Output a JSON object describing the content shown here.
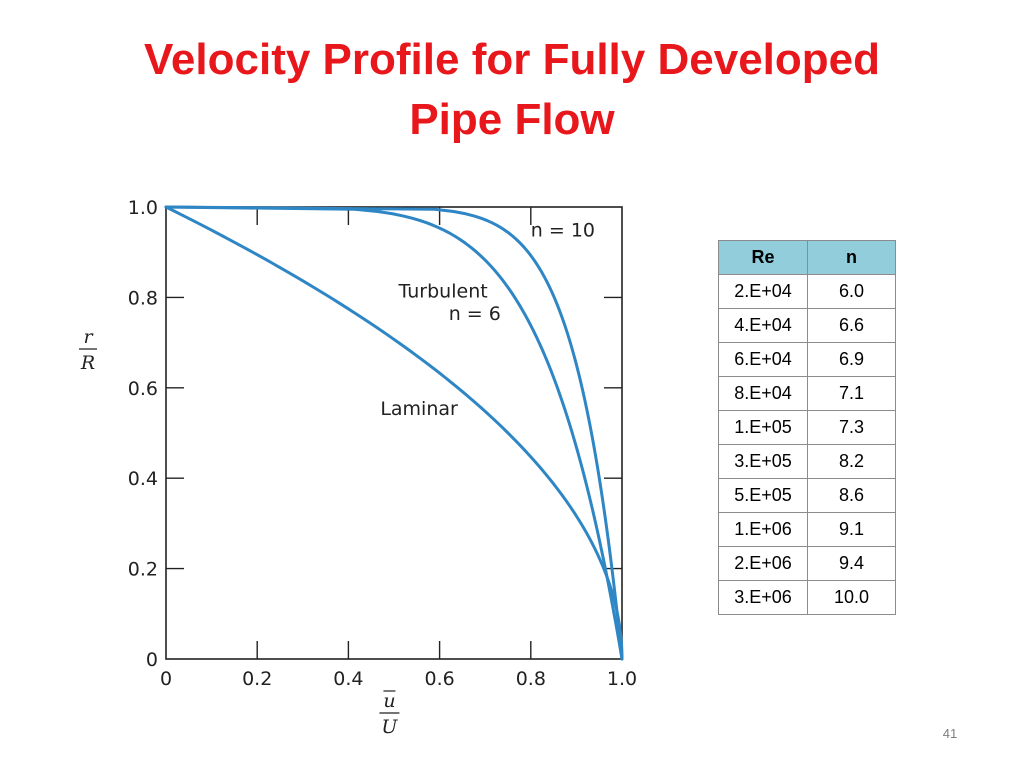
{
  "slide": {
    "title_lines": [
      "Velocity Profile for Fully Developed",
      "Pipe Flow"
    ],
    "page_number": "41"
  },
  "chart_data": {
    "type": "line",
    "title": "",
    "xlabel": {
      "numerator": "u",
      "denominator": "U"
    },
    "ylabel": {
      "numerator": "r",
      "denominator": "R"
    },
    "xlim": [
      0,
      1.0
    ],
    "ylim": [
      0,
      1.0
    ],
    "x_ticks": [
      "0",
      "0.2",
      "0.4",
      "0.6",
      "0.8",
      "1.0"
    ],
    "y_ticks": [
      "0",
      "0.2",
      "0.4",
      "0.6",
      "0.8",
      "1.0"
    ],
    "grid": false,
    "series_color": "#2f86c4",
    "series": [
      {
        "name": "Laminar",
        "exponent": "laminar"
      },
      {
        "name": "n = 6",
        "exponent": 6
      },
      {
        "name": "n = 10",
        "exponent": 10
      }
    ],
    "annotations": {
      "laminar": "Laminar",
      "turbulent": "Turbulent",
      "n6": "n = 6",
      "n10": "n = 10"
    }
  },
  "table": {
    "headers": [
      "Re",
      "n"
    ],
    "header_color": "#92cddc",
    "rows": [
      [
        "2.E+04",
        "6.0"
      ],
      [
        "4.E+04",
        "6.6"
      ],
      [
        "6.E+04",
        "6.9"
      ],
      [
        "8.E+04",
        "7.1"
      ],
      [
        "1.E+05",
        "7.3"
      ],
      [
        "3.E+05",
        "8.2"
      ],
      [
        "5.E+05",
        "8.6"
      ],
      [
        "1.E+06",
        "9.1"
      ],
      [
        "2.E+06",
        "9.4"
      ],
      [
        "3.E+06",
        "10.0"
      ]
    ]
  }
}
